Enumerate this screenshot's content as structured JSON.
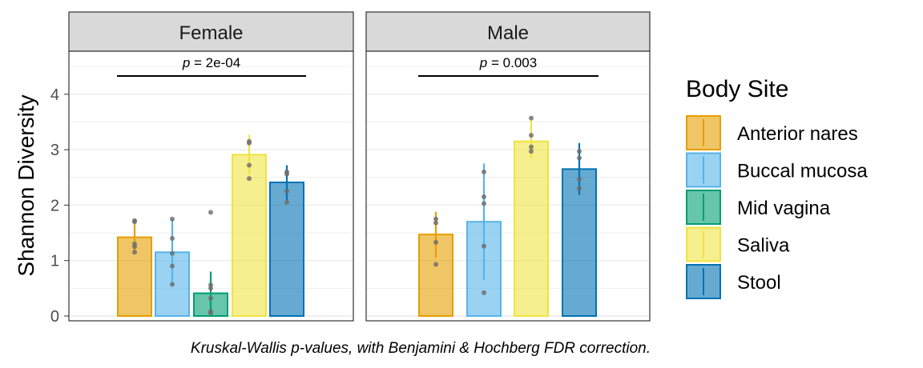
{
  "chart_data": {
    "type": "bar",
    "ylabel": "Shannon Diversity",
    "ylim": [
      0,
      4.6
    ],
    "yticks": [
      0,
      1,
      2,
      3,
      4
    ],
    "grid": true,
    "legend_title": "Body Site",
    "legend_position": "right",
    "caption": "Kruskal-Wallis p-values, with Benjamini & Hochberg FDR correction.",
    "categories": [
      "Anterior nares",
      "Buccal mucosa",
      "Mid vagina",
      "Saliva",
      "Stool"
    ],
    "colors": {
      "Anterior nares": "#E69F00",
      "Buccal mucosa": "#56B4E9",
      "Mid vagina": "#009E73",
      "Saliva": "#F0E442",
      "Stool": "#0072B2"
    },
    "panels": [
      {
        "label": "Female",
        "p_prefix": "p",
        "p_value": " = 2e-04",
        "bracket": [
          "Anterior nares",
          "Stool"
        ],
        "bars": [
          {
            "site": "Anterior nares",
            "mean": 1.42,
            "lower": 1.15,
            "upper": 1.73,
            "points": [
              1.72,
              1.7,
              1.3,
              1.25,
              1.15
            ]
          },
          {
            "site": "Buccal mucosa",
            "mean": 1.15,
            "lower": 0.57,
            "upper": 1.75,
            "points": [
              1.75,
              1.4,
              1.13,
              0.9,
              0.57
            ]
          },
          {
            "site": "Mid vagina",
            "mean": 0.41,
            "lower": 0.05,
            "upper": 0.8,
            "points": [
              1.87,
              0.56,
              0.5,
              0.32,
              0.08,
              0.05
            ]
          },
          {
            "site": "Saliva",
            "mean": 2.91,
            "lower": 2.55,
            "upper": 3.27,
            "points": [
              3.15,
              3.12,
              2.72,
              2.48
            ]
          },
          {
            "site": "Stool",
            "mean": 2.41,
            "lower": 2.08,
            "upper": 2.72,
            "points": [
              2.6,
              2.56,
              2.25,
              2.05
            ]
          }
        ]
      },
      {
        "label": "Male",
        "p_prefix": "p",
        "p_value": " = 0.003",
        "bracket": [
          "Anterior nares",
          "Stool"
        ],
        "bars": [
          {
            "site": "Anterior nares",
            "mean": 1.47,
            "lower": 1.05,
            "upper": 1.88,
            "points": [
              1.75,
              1.68,
              1.33,
              0.93
            ]
          },
          {
            "site": "Buccal mucosa",
            "mean": 1.7,
            "lower": 0.65,
            "upper": 2.75,
            "points": [
              2.6,
              2.15,
              2.03,
              1.26,
              0.42
            ]
          },
          {
            "site": "Saliva",
            "mean": 3.15,
            "lower": 2.85,
            "upper": 3.55,
            "points": [
              3.57,
              3.26,
              3.05,
              2.97
            ]
          },
          {
            "site": "Stool",
            "mean": 2.65,
            "lower": 2.18,
            "upper": 3.12,
            "points": [
              2.97,
              2.85,
              2.47,
              2.3
            ]
          }
        ]
      }
    ]
  }
}
